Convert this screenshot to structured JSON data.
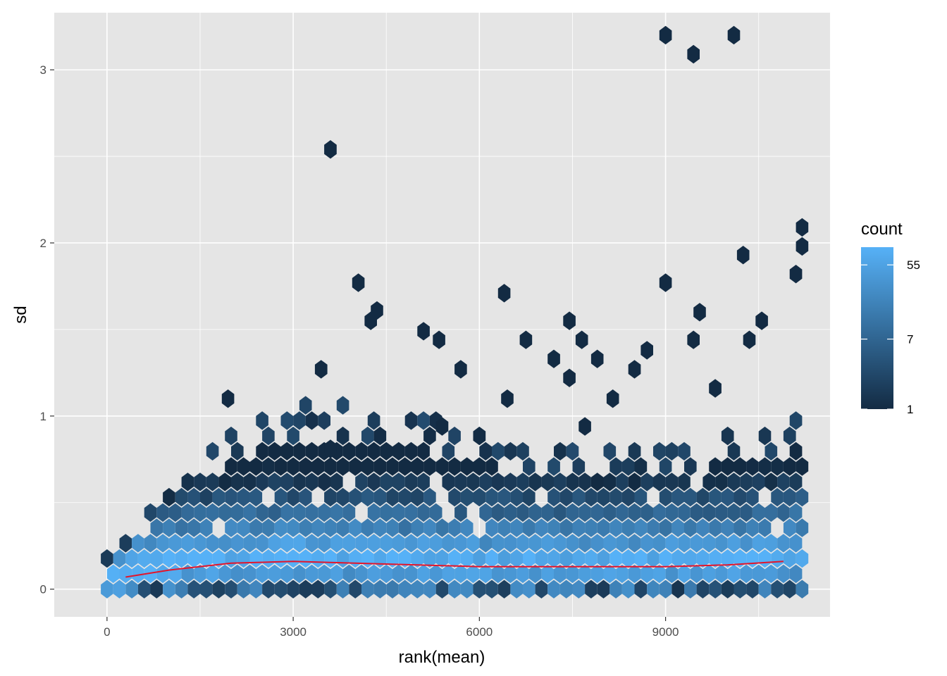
{
  "chart_data": {
    "type": "hexbin",
    "xlabel": "rank(mean)",
    "ylabel": "sd",
    "xlim": [
      -850,
      11650
    ],
    "ylim": [
      -0.16,
      3.33
    ],
    "x_ticks": [
      0,
      3000,
      6000,
      9000
    ],
    "y_ticks": [
      0,
      1,
      2,
      3
    ],
    "grid": true,
    "legend": {
      "title": "count",
      "position": "right",
      "scale": "log",
      "breaks": [
        1,
        7,
        55
      ],
      "range": [
        1,
        90
      ],
      "colors": {
        "low": "#132b43",
        "high": "#56b1f7"
      }
    },
    "colors": {
      "panel": "#e5e5e5",
      "grid": "#ffffff",
      "trend": "#e3152b"
    },
    "trend_line": {
      "x": [
        300,
        1000,
        2000,
        3000,
        4000,
        5000,
        6000,
        7000,
        8000,
        9000,
        10000,
        10900
      ],
      "y": [
        0.07,
        0.11,
        0.15,
        0.16,
        0.15,
        0.14,
        0.13,
        0.13,
        0.13,
        0.13,
        0.14,
        0.16
      ]
    },
    "outliers": [
      {
        "x": 3600,
        "y": 2.54
      },
      {
        "x": 4050,
        "y": 1.77
      },
      {
        "x": 4350,
        "y": 1.61
      },
      {
        "x": 4250,
        "y": 1.55
      },
      {
        "x": 6400,
        "y": 1.71
      },
      {
        "x": 7450,
        "y": 1.55
      },
      {
        "x": 9000,
        "y": 3.2
      },
      {
        "x": 9450,
        "y": 3.09
      },
      {
        "x": 10100,
        "y": 3.2
      },
      {
        "x": 11200,
        "y": 2.09
      },
      {
        "x": 11200,
        "y": 1.98
      },
      {
        "x": 11100,
        "y": 1.82
      },
      {
        "x": 10250,
        "y": 1.93
      },
      {
        "x": 9000,
        "y": 1.77
      },
      {
        "x": 9550,
        "y": 1.6
      },
      {
        "x": 10550,
        "y": 1.55
      },
      {
        "x": 5100,
        "y": 1.49
      },
      {
        "x": 5350,
        "y": 1.44
      },
      {
        "x": 6750,
        "y": 1.44
      },
      {
        "x": 7650,
        "y": 1.44
      },
      {
        "x": 9450,
        "y": 1.44
      },
      {
        "x": 10350,
        "y": 1.44
      },
      {
        "x": 3450,
        "y": 1.27
      },
      {
        "x": 5700,
        "y": 1.27
      },
      {
        "x": 7200,
        "y": 1.33
      },
      {
        "x": 7900,
        "y": 1.33
      },
      {
        "x": 8500,
        "y": 1.27
      },
      {
        "x": 8700,
        "y": 1.38
      },
      {
        "x": 9800,
        "y": 1.16
      },
      {
        "x": 6450,
        "y": 1.1
      },
      {
        "x": 1950,
        "y": 1.1
      },
      {
        "x": 8150,
        "y": 1.1
      },
      {
        "x": 7450,
        "y": 1.22
      },
      {
        "x": 5400,
        "y": 0.94
      },
      {
        "x": 7700,
        "y": 0.94
      },
      {
        "x": 3600,
        "y": 0.81
      }
    ],
    "density_envelope": {
      "x": [
        0,
        1000,
        2000,
        3000,
        4000,
        5000,
        6000,
        7000,
        8000,
        9000,
        10000,
        11200
      ],
      "sd_upper": [
        0.18,
        0.6,
        0.95,
        1.08,
        1.1,
        1.02,
        0.9,
        0.85,
        0.82,
        0.85,
        0.9,
        1.02
      ]
    }
  }
}
